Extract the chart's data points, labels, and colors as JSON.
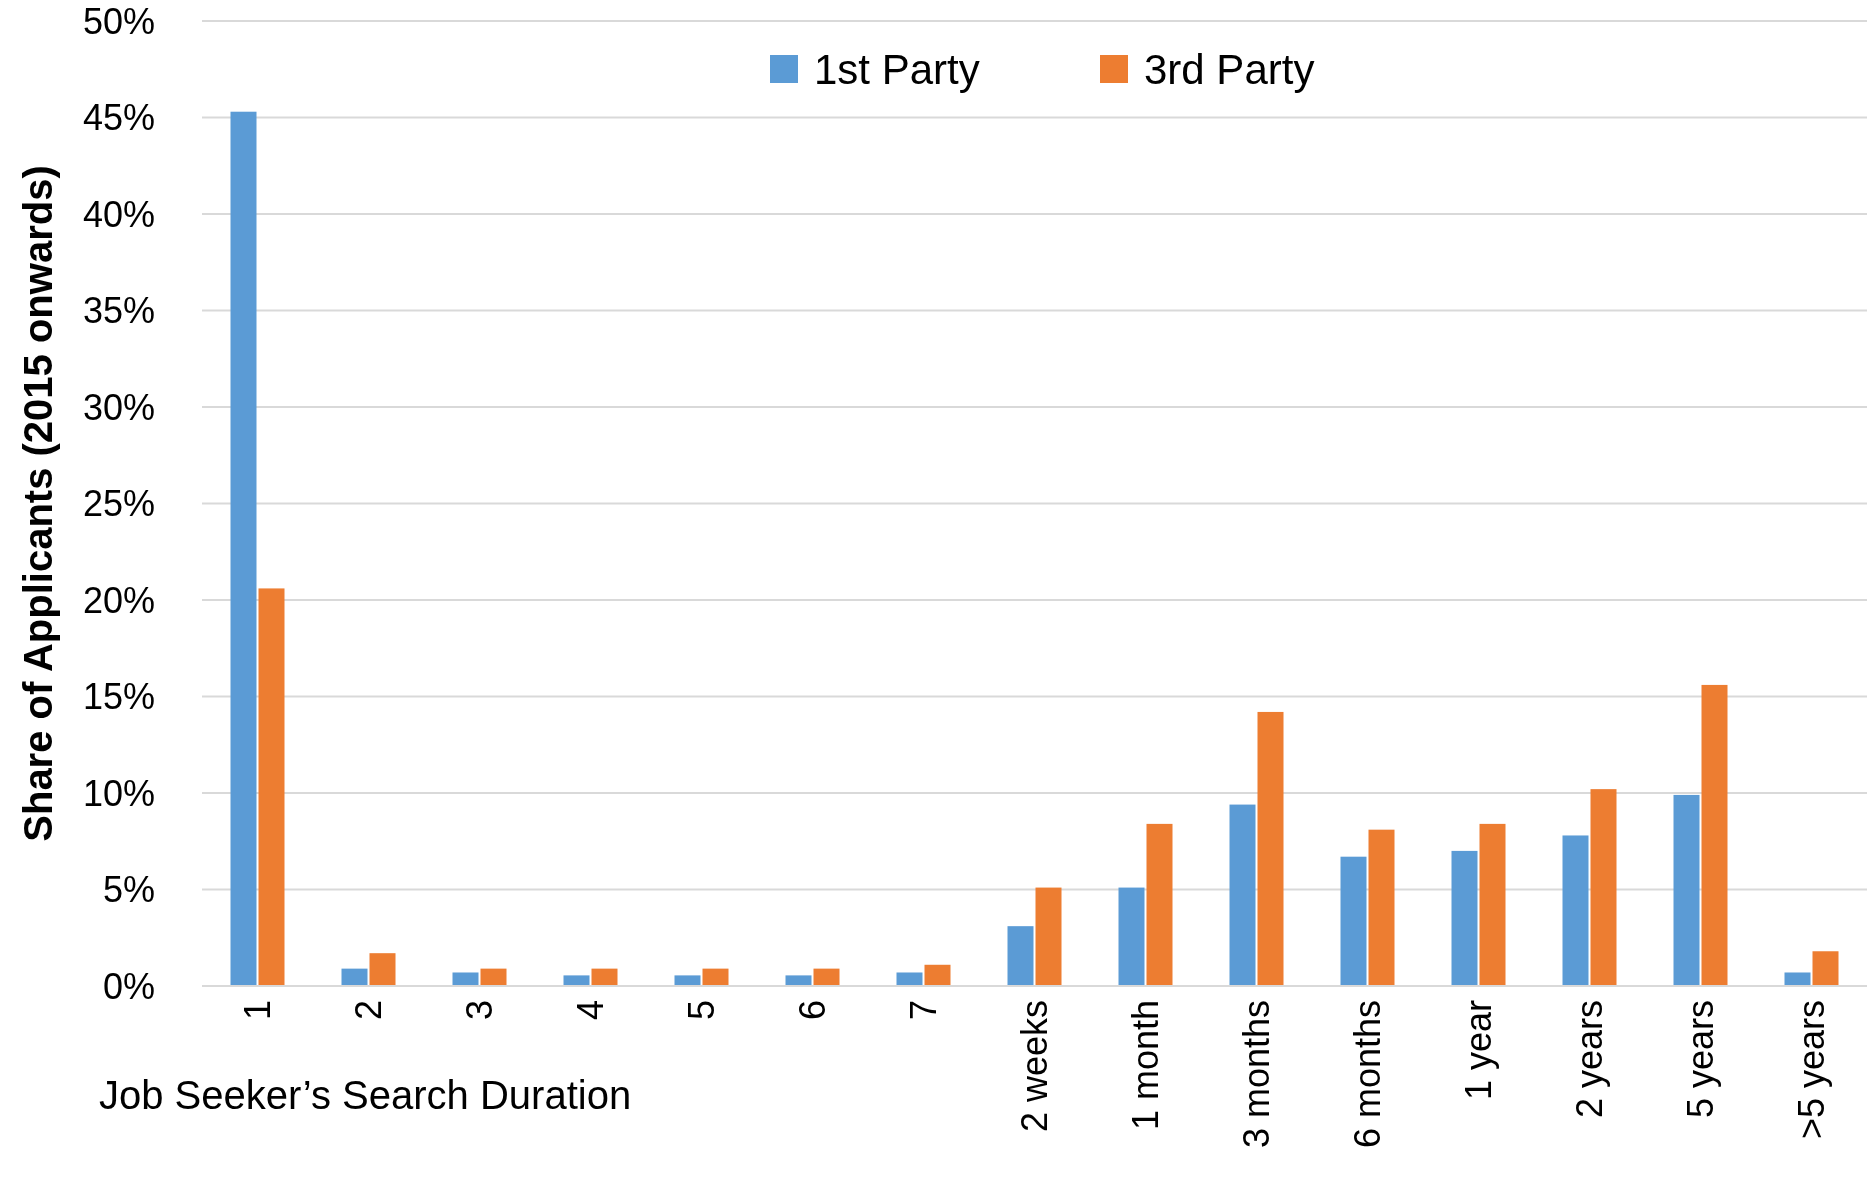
{
  "chart_data": {
    "type": "bar",
    "xlabel": "Job Seeker’s Search Duration",
    "ylabel": "Share of Applicants (2015 onwards)",
    "categories": [
      "1",
      "2",
      "3",
      "4",
      "5",
      "6",
      "7",
      "2 weeks",
      "1 month",
      "3 months",
      "6 months",
      "1 year",
      "2 years",
      "5 years",
      ">5 years"
    ],
    "series": [
      {
        "name": "1st Party",
        "color": "#5b9bd5",
        "values": [
          45.3,
          0.9,
          0.7,
          0.55,
          0.55,
          0.55,
          0.7,
          3.1,
          5.1,
          9.4,
          6.7,
          7.0,
          7.8,
          9.9,
          0.7
        ]
      },
      {
        "name": "3rd Party",
        "color": "#ed7d31",
        "values": [
          20.6,
          1.7,
          0.9,
          0.9,
          0.9,
          0.9,
          1.1,
          5.1,
          8.4,
          14.2,
          8.1,
          8.4,
          10.2,
          15.6,
          1.8
        ]
      }
    ],
    "ylim": [
      0,
      50
    ],
    "yticks": [
      {
        "value": 0,
        "label": "0%"
      },
      {
        "value": 5,
        "label": "5%"
      },
      {
        "value": 10,
        "label": "10%"
      },
      {
        "value": 15,
        "label": "15%"
      },
      {
        "value": 20,
        "label": "20%"
      },
      {
        "value": 25,
        "label": "25%"
      },
      {
        "value": 30,
        "label": "30%"
      },
      {
        "value": 35,
        "label": "35%"
      },
      {
        "value": 40,
        "label": "40%"
      },
      {
        "value": 45,
        "label": "45%"
      },
      {
        "value": 50,
        "label": "50%"
      }
    ],
    "grid": "y",
    "legend": "top"
  }
}
